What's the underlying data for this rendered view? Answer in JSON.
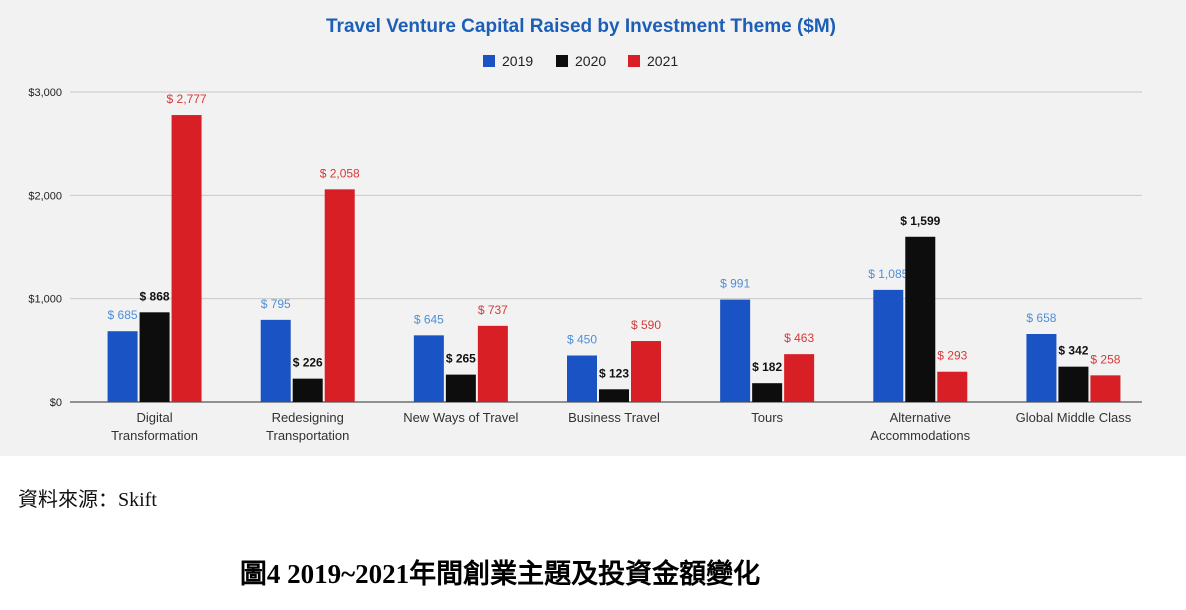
{
  "chart_data": {
    "type": "bar",
    "title": "Travel Venture Capital Raised by Investment Theme ($M)",
    "categories": [
      [
        "Digital",
        "Transformation"
      ],
      [
        "Redesigning",
        "Transportation"
      ],
      [
        "New Ways of Travel"
      ],
      [
        "Business Travel"
      ],
      [
        "Tours"
      ],
      [
        "Alternative",
        "Accommodations"
      ],
      [
        "Global Middle Class"
      ]
    ],
    "series": [
      {
        "name": "2019",
        "color": "#1a53c4",
        "label_color": "#4f8fd6",
        "values": [
          685,
          795,
          645,
          450,
          991,
          1085,
          658
        ],
        "labels": [
          "$ 685",
          "$ 795",
          "$ 645",
          "$ 450",
          "$ 991",
          "$ 1,085",
          "$ 658"
        ]
      },
      {
        "name": "2020",
        "color": "#0d0d0d",
        "label_color": "#111111",
        "values": [
          868,
          226,
          265,
          123,
          182,
          1599,
          342
        ],
        "labels": [
          "$ 868",
          "$ 226",
          "$ 265",
          "$ 123",
          "$ 182",
          "$ 1,599",
          "$ 342"
        ]
      },
      {
        "name": "2021",
        "color": "#d81f26",
        "label_color": "#d43a3a",
        "values": [
          2777,
          2058,
          737,
          590,
          463,
          293,
          258
        ],
        "labels": [
          "$ 2,777",
          "$ 2,058",
          "$ 737",
          "$ 590",
          "$ 463",
          "$ 293",
          "$ 258"
        ]
      }
    ],
    "yticks": [
      0,
      1000,
      2000,
      3000
    ],
    "ytick_labels": [
      "$0",
      "$1,000",
      "$2,000",
      "$3,000"
    ],
    "ylim": [
      0,
      3000
    ],
    "grid": true,
    "legend": "top-center",
    "title_color": "#1c5fb8"
  },
  "source_text": "資料來源：Skift",
  "figure_caption": "圖4 2019~2021年間創業主題及投資金額變化"
}
